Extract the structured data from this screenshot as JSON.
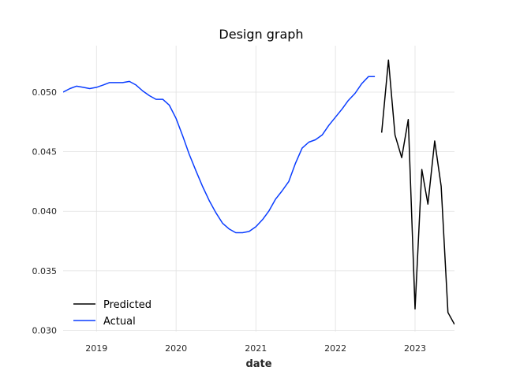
{
  "chart_data": {
    "type": "line",
    "title": "Design graph",
    "xlabel": "date",
    "ylabel": "",
    "xlim": [
      "2018-08-01",
      "2023-07-01"
    ],
    "ylim": [
      0.0299,
      0.0539
    ],
    "grid": true,
    "legend": "bottom-left",
    "x_ticks": [
      "2019",
      "2020",
      "2021",
      "2022",
      "2023"
    ],
    "y_ticks": [
      "0.030",
      "0.035",
      "0.040",
      "0.045",
      "0.050"
    ],
    "colors": {
      "Predicted": "#000000",
      "Actual": "#0a3dff"
    },
    "series": [
      {
        "name": "Actual",
        "x": [
          "2018-08-01",
          "2018-09-01",
          "2018-10-01",
          "2018-11-01",
          "2018-12-01",
          "2019-01-01",
          "2019-02-01",
          "2019-03-01",
          "2019-04-01",
          "2019-05-01",
          "2019-06-01",
          "2019-07-01",
          "2019-08-01",
          "2019-09-01",
          "2019-10-01",
          "2019-11-01",
          "2019-12-01",
          "2020-01-01",
          "2020-02-01",
          "2020-03-01",
          "2020-04-01",
          "2020-05-01",
          "2020-06-01",
          "2020-07-01",
          "2020-08-01",
          "2020-09-01",
          "2020-10-01",
          "2020-11-01",
          "2020-12-01",
          "2021-01-01",
          "2021-02-01",
          "2021-03-01",
          "2021-04-01",
          "2021-05-01",
          "2021-06-01",
          "2021-07-01",
          "2021-08-01",
          "2021-09-01",
          "2021-10-01",
          "2021-11-01",
          "2021-12-01",
          "2022-01-01",
          "2022-02-01",
          "2022-03-01",
          "2022-04-01",
          "2022-05-01",
          "2022-06-01",
          "2022-07-01"
        ],
        "y": [
          0.05,
          0.0503,
          0.0505,
          0.0504,
          0.0503,
          0.0504,
          0.0506,
          0.0508,
          0.0508,
          0.0508,
          0.0509,
          0.0506,
          0.0501,
          0.0497,
          0.0494,
          0.0494,
          0.0489,
          0.0478,
          0.0463,
          0.0448,
          0.0434,
          0.0421,
          0.0409,
          0.0399,
          0.039,
          0.0385,
          0.0382,
          0.0382,
          0.0383,
          0.0387,
          0.0393,
          0.04,
          0.041,
          0.0417,
          0.0425,
          0.044,
          0.0453,
          0.0458,
          0.046,
          0.0464,
          0.0472,
          0.0479,
          0.0486,
          0.0493,
          0.0499,
          0.0507,
          0.0513,
          0.0513
        ]
      },
      {
        "name": "Predicted",
        "x": [
          "2022-08-01",
          "2022-09-01",
          "2022-10-01",
          "2022-11-01",
          "2022-12-01",
          "2023-01-01",
          "2023-02-01",
          "2023-03-01",
          "2023-04-01",
          "2023-05-01",
          "2023-06-01",
          "2023-07-01"
        ],
        "y": [
          0.0466,
          0.0527,
          0.0464,
          0.0445,
          0.0477,
          0.0318,
          0.0435,
          0.0406,
          0.0459,
          0.0421,
          0.0315,
          0.0305
        ]
      }
    ]
  }
}
